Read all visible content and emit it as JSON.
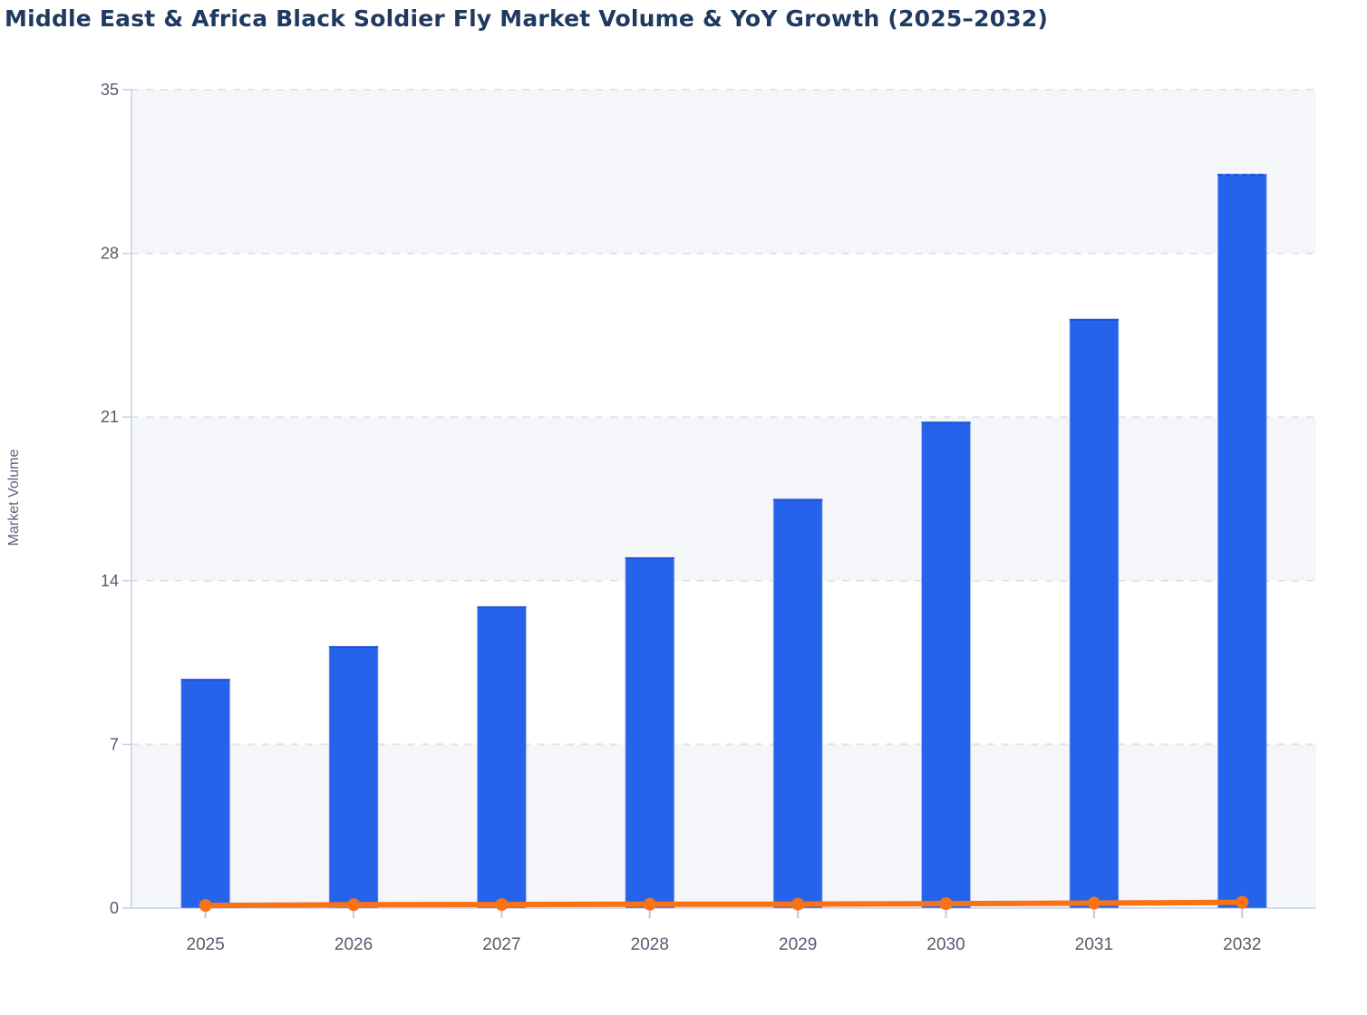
{
  "title": "Middle East & Africa Black Soldier Fly Market Volume & YoY Growth (2025–2032)",
  "chart_data": {
    "type": "bar",
    "subtype": "combo-bar-line",
    "title": "Middle East & Africa Black Soldier Fly Market Volume & YoY Growth (2025–2032)",
    "categories": [
      "2025",
      "2026",
      "2027",
      "2028",
      "2029",
      "2030",
      "2031",
      "2032"
    ],
    "series": [
      {
        "name": "Market Volume",
        "type": "bar",
        "color": "#2563eb",
        "values": [
          9.8,
          11.2,
          12.9,
          15.0,
          17.5,
          20.8,
          25.2,
          31.4
        ]
      },
      {
        "name": "YoY Growth",
        "type": "line",
        "color": "#f97316",
        "values": [
          0.11,
          0.143,
          0.152,
          0.163,
          0.167,
          0.189,
          0.212,
          0.246
        ]
      }
    ],
    "xlabel": "",
    "ylabel": "Market Volume",
    "ylim": [
      0,
      35
    ],
    "yticks": [
      0,
      7,
      14,
      21,
      28,
      35
    ],
    "grid": {
      "horizontal_gridlines": "dashed",
      "row_bands_alternate": true,
      "vertical_gridlines": "off"
    },
    "legend": "none"
  },
  "colors": {
    "bar": "#2563eb",
    "bar_top_edge": "#1d4fd6",
    "bar_outline": "#b9c8f4",
    "line": "#f97316",
    "title_text": "#1e3a5f",
    "tick_text": "#515d6c",
    "axis": "#c7d1ec",
    "gridline": "#e1e3e9",
    "band_gray": "#f5f6fa",
    "band_white": "#ffffff",
    "background": "#ffffff"
  }
}
